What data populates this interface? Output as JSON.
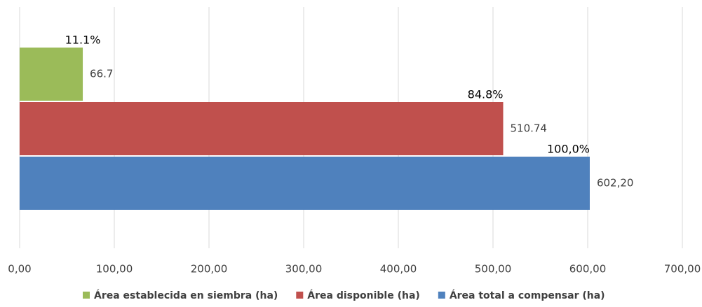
{
  "chart_data": {
    "type": "hbar",
    "series": [
      {
        "name": "Área establecida en siembra (ha)",
        "color": "#9bbb59",
        "values": [
          66.7
        ],
        "percent_labels": [
          "11.1%"
        ]
      },
      {
        "name": "Área disponible (ha)",
        "color": "#c0504d",
        "values": [
          510.74
        ],
        "percent_labels": [
          "84.8%"
        ]
      },
      {
        "name": "Área total a compensar (ha)",
        "color": "#4f81bd",
        "values": [
          602.2
        ],
        "value_labels": [
          "602,20"
        ],
        "percent_labels": [
          "100,0%"
        ]
      }
    ],
    "xlim": [
      0,
      700
    ],
    "xticks": [
      {
        "value": 0,
        "label": "0,00"
      },
      {
        "value": 100,
        "label": "100,00"
      },
      {
        "value": 200,
        "label": "200,00"
      },
      {
        "value": 300,
        "label": "300,00"
      },
      {
        "value": 400,
        "label": "400,00"
      },
      {
        "value": 500,
        "label": "500,00"
      },
      {
        "value": 600,
        "label": "600,00"
      },
      {
        "value": 700,
        "label": "700,00"
      }
    ],
    "grid": true,
    "legend": "bottom"
  }
}
